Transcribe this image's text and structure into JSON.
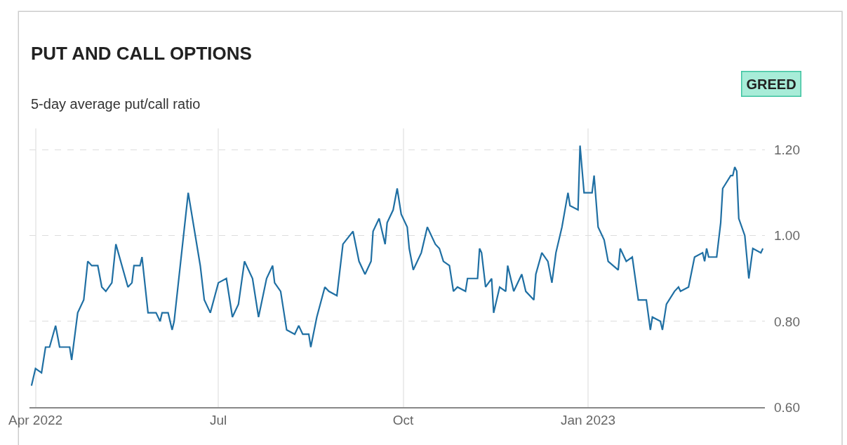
{
  "chart_data": {
    "type": "line",
    "title": "PUT AND CALL OPTIONS",
    "subtitle": "5-day average put/call ratio",
    "annotations": [
      "GREED"
    ],
    "x": [
      "2022-03-30",
      "2022-04-01",
      "2022-04-04",
      "2022-04-06",
      "2022-04-08",
      "2022-04-11",
      "2022-04-13",
      "2022-04-18",
      "2022-04-19",
      "2022-04-22",
      "2022-04-25",
      "2022-04-27",
      "2022-04-29",
      "2022-05-02",
      "2022-05-04",
      "2022-05-06",
      "2022-05-09",
      "2022-05-11",
      "2022-05-17",
      "2022-05-19",
      "2022-05-20",
      "2022-05-23",
      "2022-05-24",
      "2022-05-27",
      "2022-05-31",
      "2022-06-02",
      "2022-06-03",
      "2022-06-06",
      "2022-06-08",
      "2022-06-09",
      "2022-06-16",
      "2022-06-22",
      "2022-06-24",
      "2022-06-27",
      "2022-07-01",
      "2022-07-05",
      "2022-07-08",
      "2022-07-11",
      "2022-07-14",
      "2022-07-18",
      "2022-07-21",
      "2022-07-25",
      "2022-07-28",
      "2022-07-29",
      "2022-08-01",
      "2022-08-04",
      "2022-08-08",
      "2022-08-10",
      "2022-08-12",
      "2022-08-15",
      "2022-08-16",
      "2022-08-19",
      "2022-08-23",
      "2022-08-25",
      "2022-08-29",
      "2022-09-01",
      "2022-09-06",
      "2022-09-09",
      "2022-09-12",
      "2022-09-15",
      "2022-09-16",
      "2022-09-19",
      "2022-09-22",
      "2022-09-23",
      "2022-09-26",
      "2022-09-28",
      "2022-09-30",
      "2022-10-03",
      "2022-10-04",
      "2022-10-06",
      "2022-10-10",
      "2022-10-13",
      "2022-10-17",
      "2022-10-19",
      "2022-10-21",
      "2022-10-24",
      "2022-10-26",
      "2022-10-28",
      "2022-11-01",
      "2022-11-02",
      "2022-11-07",
      "2022-11-08",
      "2022-11-09",
      "2022-11-11",
      "2022-11-14",
      "2022-11-15",
      "2022-11-18",
      "2022-11-21",
      "2022-11-22",
      "2022-11-25",
      "2022-11-29",
      "2022-12-01",
      "2022-12-05",
      "2022-12-06",
      "2022-12-09",
      "2022-12-12",
      "2022-12-14",
      "2022-12-16",
      "2022-12-19",
      "2022-12-22",
      "2022-12-23",
      "2022-12-27",
      "2022-12-28",
      "2022-12-30",
      "2023-01-03",
      "2023-01-04",
      "2023-01-06",
      "2023-01-09",
      "2023-01-11",
      "2023-01-16",
      "2023-01-17",
      "2023-01-19",
      "2023-01-20",
      "2023-01-23",
      "2023-01-26",
      "2023-01-30",
      "2023-02-01",
      "2023-02-02",
      "2023-02-06",
      "2023-02-07",
      "2023-02-09",
      "2023-02-13",
      "2023-02-15",
      "2023-02-16",
      "2023-02-20",
      "2023-02-23",
      "2023-02-27",
      "2023-02-28",
      "2023-03-01",
      "2023-03-02",
      "2023-03-06",
      "2023-03-08",
      "2023-03-09",
      "2023-03-13",
      "2023-03-14",
      "2023-03-15",
      "2023-03-16",
      "2023-03-17",
      "2023-03-20",
      "2023-03-22",
      "2023-03-24",
      "2023-03-28",
      "2023-03-29"
    ],
    "series": [
      {
        "color": "#1f6fa3",
        "values": [
          0.65,
          0.69,
          0.68,
          0.74,
          0.74,
          0.79,
          0.74,
          0.74,
          0.71,
          0.82,
          0.85,
          0.94,
          0.93,
          0.93,
          0.88,
          0.87,
          0.89,
          0.98,
          0.88,
          0.89,
          0.93,
          0.93,
          0.95,
          0.82,
          0.82,
          0.8,
          0.82,
          0.82,
          0.78,
          0.8,
          1.1,
          0.93,
          0.85,
          0.82,
          0.89,
          0.9,
          0.81,
          0.84,
          0.94,
          0.9,
          0.81,
          0.9,
          0.93,
          0.89,
          0.87,
          0.78,
          0.77,
          0.79,
          0.77,
          0.77,
          0.74,
          0.81,
          0.88,
          0.87,
          0.86,
          0.98,
          1.01,
          0.94,
          0.91,
          0.94,
          1.01,
          1.04,
          0.98,
          1.03,
          1.06,
          1.11,
          1.05,
          1.02,
          0.97,
          0.92,
          0.96,
          1.02,
          0.98,
          0.97,
          0.94,
          0.93,
          0.87,
          0.88,
          0.87,
          0.9,
          0.9,
          0.97,
          0.96,
          0.88,
          0.9,
          0.82,
          0.88,
          0.87,
          0.93,
          0.87,
          0.91,
          0.87,
          0.85,
          0.91,
          0.96,
          0.94,
          0.89,
          0.96,
          1.02,
          1.1,
          1.07,
          1.06,
          1.21,
          1.1,
          1.1,
          1.14,
          1.02,
          0.99,
          0.94,
          0.92,
          0.97,
          0.95,
          0.94,
          0.95,
          0.85,
          0.85,
          0.78,
          0.81,
          0.8,
          0.78,
          0.84,
          0.87,
          0.88,
          0.87,
          0.88,
          0.95,
          0.96,
          0.94,
          0.97,
          0.95,
          0.95,
          1.03,
          1.11,
          1.14,
          1.14,
          1.16,
          1.15,
          1.04,
          1.0,
          0.9,
          0.97,
          0.96,
          0.97
        ]
      }
    ],
    "xlim": [
      "2022-03-29",
      "2023-03-30"
    ],
    "xticks": [
      {
        "value": "2022-04-01",
        "label": "Apr 2022"
      },
      {
        "value": "2022-07-01",
        "label": "Jul"
      },
      {
        "value": "2022-10-01",
        "label": "Oct"
      },
      {
        "value": "2023-01-01",
        "label": "Jan 2023"
      }
    ],
    "ylim": [
      0.6,
      1.25
    ],
    "yticks": [
      {
        "value": 0.6,
        "label": "0.60"
      },
      {
        "value": 0.8,
        "label": "0.80"
      },
      {
        "value": 1.0,
        "label": "1.00"
      },
      {
        "value": 1.2,
        "label": "1.20"
      }
    ],
    "grid": true,
    "line_style": "solid"
  }
}
